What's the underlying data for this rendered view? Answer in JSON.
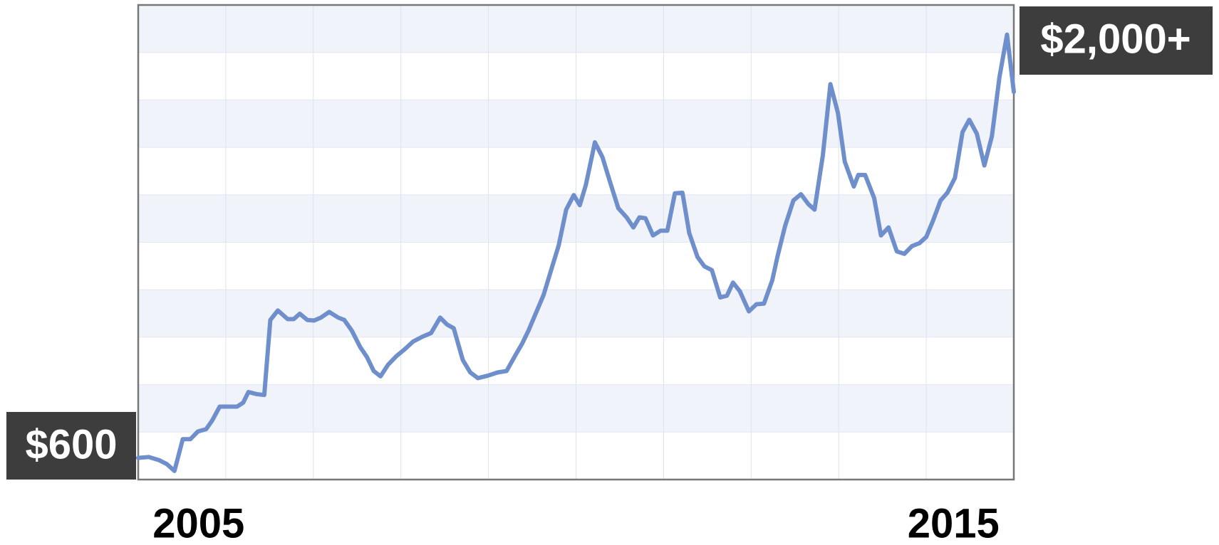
{
  "chart_data": {
    "type": "line",
    "annotations": [
      "$600",
      "$2,000+"
    ],
    "color": "#6f8fcc",
    "grid": true,
    "xlim": [
      2004.2,
      2015.8
    ],
    "xticks": [
      2005,
      2015
    ],
    "ylim": [
      530,
      2130
    ],
    "x": [
      2004.2,
      2004.34,
      2004.48,
      2004.58,
      2004.68,
      2004.79,
      2004.89,
      2004.99,
      2005.1,
      2005.18,
      2005.28,
      2005.51,
      2005.59,
      2005.66,
      2005.77,
      2005.87,
      2005.95,
      2006.05,
      2006.18,
      2006.26,
      2006.34,
      2006.44,
      2006.53,
      2006.62,
      2006.73,
      2006.85,
      2006.93,
      2007.03,
      2007.14,
      2007.23,
      2007.32,
      2007.41,
      2007.51,
      2007.62,
      2007.73,
      2007.84,
      2007.96,
      2008.08,
      2008.2,
      2008.29,
      2008.38,
      2008.5,
      2008.6,
      2008.7,
      2008.83,
      2008.96,
      2009.08,
      2009.19,
      2009.29,
      2009.37,
      2009.47,
      2009.57,
      2009.67,
      2009.77,
      2009.87,
      2009.97,
      2010.05,
      2010.13,
      2010.25,
      2010.35,
      2010.45,
      2010.56,
      2010.67,
      2010.76,
      2010.84,
      2010.92,
      2011.02,
      2011.12,
      2011.21,
      2011.31,
      2011.41,
      2011.5,
      2011.61,
      2011.7,
      2011.8,
      2011.91,
      2012.0,
      2012.08,
      2012.17,
      2012.29,
      2012.39,
      2012.49,
      2012.6,
      2012.67,
      2012.77,
      2012.88,
      2012.98,
      2013.08,
      2013.16,
      2013.27,
      2013.37,
      2013.47,
      2013.56,
      2013.68,
      2013.74,
      2013.83,
      2013.95,
      2014.04,
      2014.14,
      2014.25,
      2014.35,
      2014.45,
      2014.55,
      2014.64,
      2014.73,
      2014.83,
      2014.92,
      2015.02,
      2015.12,
      2015.21,
      2015.31,
      2015.41,
      2015.51,
      2015.61,
      2015.71,
      2015.8
    ],
    "values": [
      603,
      606,
      595,
      582,
      559,
      666,
      666,
      692,
      700,
      729,
      776,
      776,
      789,
      825,
      818,
      815,
      1068,
      1100,
      1071,
      1071,
      1089,
      1068,
      1066,
      1076,
      1095,
      1076,
      1068,
      1032,
      977,
      943,
      896,
      878,
      917,
      946,
      969,
      995,
      1011,
      1024,
      1076,
      1053,
      1040,
      933,
      891,
      872,
      880,
      891,
      896,
      946,
      990,
      1032,
      1092,
      1152,
      1236,
      1319,
      1440,
      1489,
      1455,
      1523,
      1667,
      1617,
      1534,
      1445,
      1414,
      1380,
      1414,
      1411,
      1353,
      1369,
      1369,
      1495,
      1497,
      1361,
      1280,
      1249,
      1236,
      1144,
      1150,
      1194,
      1165,
      1097,
      1121,
      1123,
      1202,
      1283,
      1385,
      1471,
      1492,
      1458,
      1440,
      1623,
      1863,
      1766,
      1602,
      1518,
      1557,
      1557,
      1479,
      1353,
      1380,
      1299,
      1291,
      1317,
      1327,
      1348,
      1403,
      1471,
      1497,
      1547,
      1701,
      1743,
      1696,
      1589,
      1688,
      1887,
      2030,
      1837
    ]
  }
}
